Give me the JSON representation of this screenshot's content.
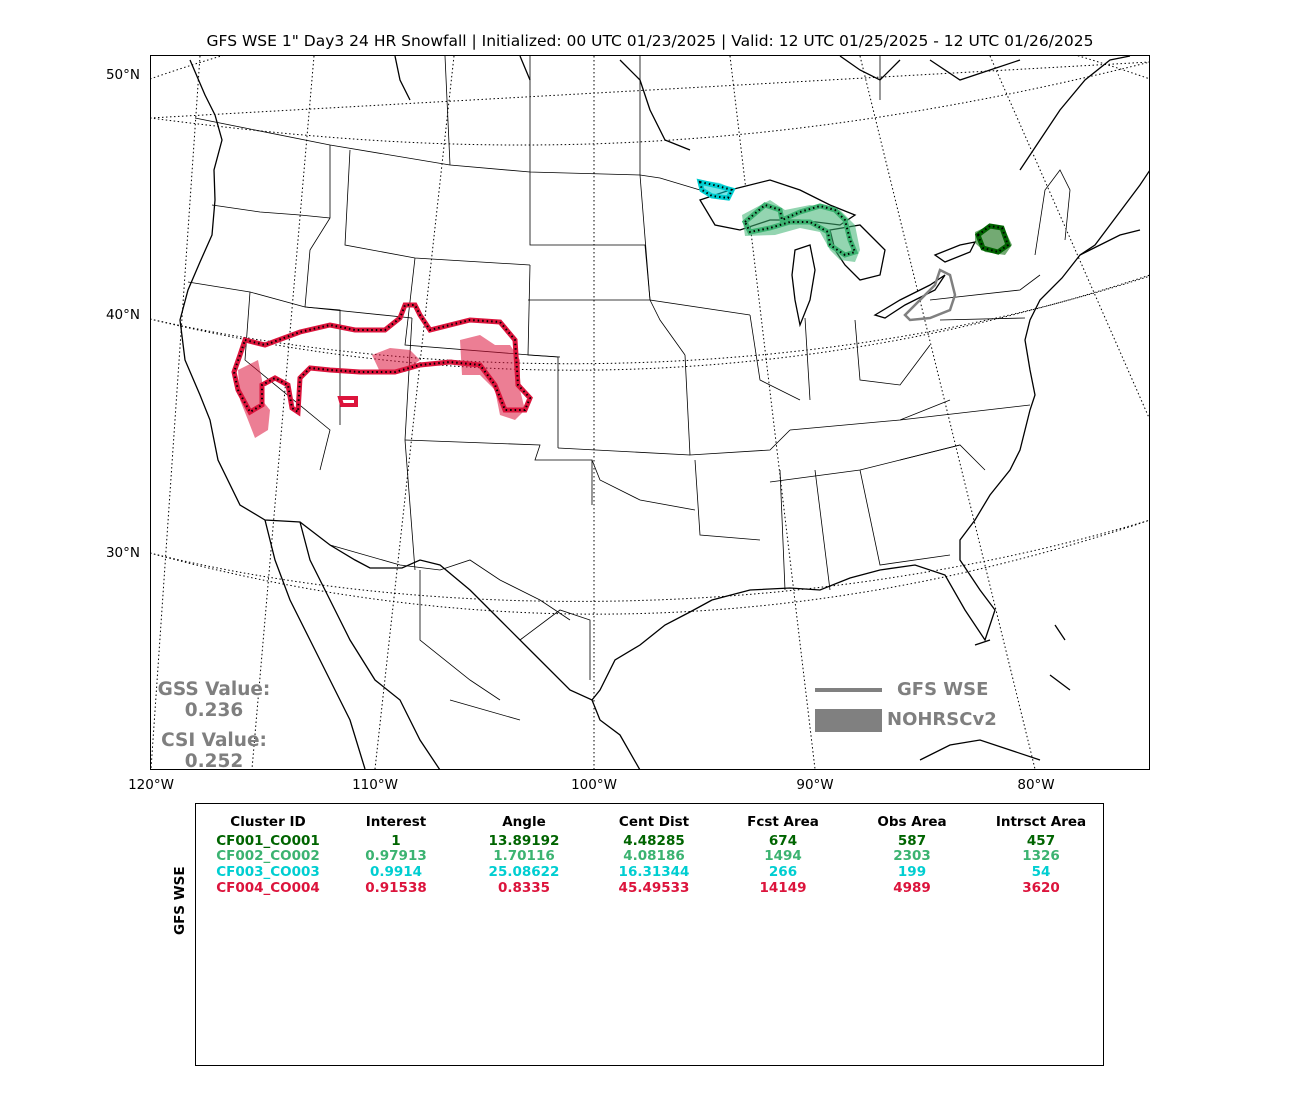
{
  "title": "GFS WSE 1\" Day3 24 HR Snowfall | Initialized: 00 UTC 01/23/2025 | Valid: 12 UTC 01/25/2025 - 12 UTC 01/26/2025",
  "map": {
    "lat_labels": [
      "50°N",
      "40°N",
      "30°N"
    ],
    "lon_labels": [
      "120°W",
      "110°W",
      "100°W",
      "90°W",
      "80°W"
    ]
  },
  "stats": {
    "gss_label": "GSS Value:",
    "gss_value": "0.236",
    "csi_label": "CSI Value:",
    "csi_value": "0.252"
  },
  "legend": {
    "forecast_label": "GFS WSE",
    "observed_label": "NOHRSCv2",
    "color": "#808080"
  },
  "table": {
    "row_label": "GFS WSE",
    "headers": [
      "Cluster ID",
      "Interest",
      "Angle",
      "Cent Dist",
      "Fcst Area",
      "Obs Area",
      "Intrsct Area"
    ],
    "rows": [
      {
        "color": "#006400",
        "cells": [
          "CF001_CO001",
          "1",
          "13.89192",
          "4.48285",
          "674",
          "587",
          "457"
        ]
      },
      {
        "color": "#3cb371",
        "cells": [
          "CF002_CO002",
          "0.97913",
          "1.70116",
          "4.08186",
          "1494",
          "2303",
          "1326"
        ]
      },
      {
        "color": "#00ced1",
        "cells": [
          "CF003_CO003",
          "0.9914",
          "25.08622",
          "16.31344",
          "266",
          "199",
          "54"
        ]
      },
      {
        "color": "#dc143c",
        "cells": [
          "CF004_CO004",
          "0.91538",
          "0.8335",
          "45.49533",
          "14149",
          "4989",
          "3620"
        ]
      }
    ]
  },
  "clusters": [
    {
      "id": "CF001_CO001",
      "color": "#006400",
      "region": "northern-new-york"
    },
    {
      "id": "CF002_CO002",
      "color": "#3cb371",
      "region": "upper-michigan"
    },
    {
      "id": "CF003_CO003",
      "color": "#00ced1",
      "region": "lake-superior-west"
    },
    {
      "id": "CF004_CO004",
      "color": "#dc143c",
      "region": "great-basin-colorado"
    },
    {
      "id": "unmatched-forecast",
      "color": "#808080",
      "region": "lake-erie"
    }
  ]
}
